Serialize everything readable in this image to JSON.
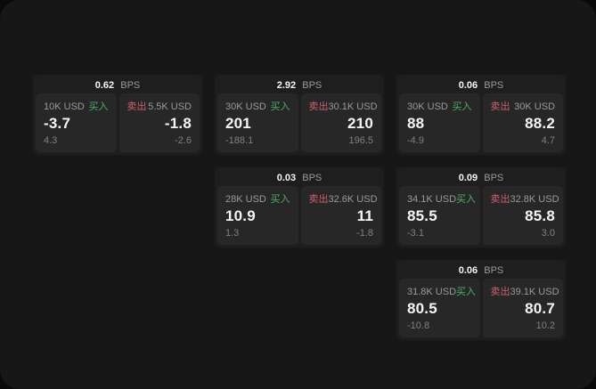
{
  "labels": {
    "bps_unit": "BPS",
    "buy": "买入",
    "sell": "卖出"
  },
  "colors": {
    "page_bg": "#0a0a0a",
    "surface_bg": "#171717",
    "card_bg": "#1e1e1e",
    "panel_bg": "#272727",
    "value_text": "#f5f5f5",
    "muted_text": "#9a9a9a",
    "dim_text": "#808080",
    "buy": "#4caf65",
    "sell": "#cf5f6d"
  },
  "cards": [
    {
      "col": 1,
      "row": 1,
      "bps": "0.62",
      "buy": {
        "amount": "10K USD",
        "value": "-3.7",
        "delta": "4.3"
      },
      "sell": {
        "amount": "5.5K USD",
        "value": "-1.8",
        "delta": "-2.6"
      }
    },
    {
      "col": 2,
      "row": 1,
      "bps": "2.92",
      "buy": {
        "amount": "30K USD",
        "value": "201",
        "delta": "-188.1"
      },
      "sell": {
        "amount": "30.1K USD",
        "value": "210",
        "delta": "196.5"
      }
    },
    {
      "col": 3,
      "row": 1,
      "bps": "0.06",
      "buy": {
        "amount": "30K USD",
        "value": "88",
        "delta": "-4.9"
      },
      "sell": {
        "amount": "30K USD",
        "value": "88.2",
        "delta": "4.7"
      }
    },
    {
      "col": 2,
      "row": 2,
      "bps": "0.03",
      "buy": {
        "amount": "28K USD",
        "value": "10.9",
        "delta": "1.3"
      },
      "sell": {
        "amount": "32.6K USD",
        "value": "11",
        "delta": "-1.8"
      }
    },
    {
      "col": 3,
      "row": 2,
      "bps": "0.09",
      "buy": {
        "amount": "34.1K USD",
        "value": "85.5",
        "delta": "-3.1"
      },
      "sell": {
        "amount": "32.8K USD",
        "value": "85.8",
        "delta": "3.0"
      }
    },
    {
      "col": 3,
      "row": 3,
      "bps": "0.06",
      "buy": {
        "amount": "31.8K USD",
        "value": "80.5",
        "delta": "-10.8"
      },
      "sell": {
        "amount": "39.1K USD",
        "value": "80.7",
        "delta": "10.2"
      }
    }
  ]
}
